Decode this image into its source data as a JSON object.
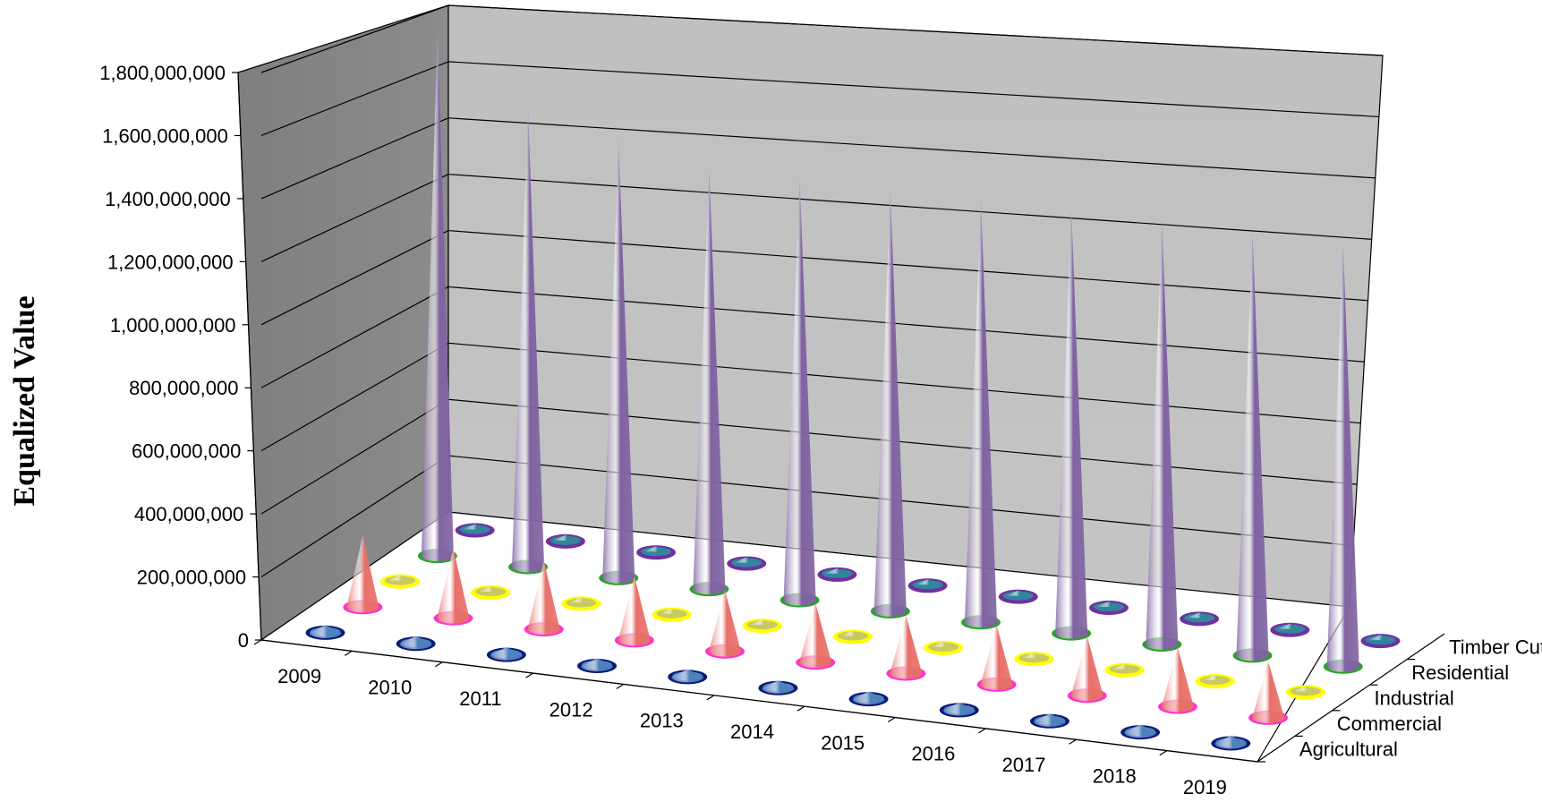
{
  "chart_data": {
    "type": "3d-cone",
    "ylabel": "Equalized Value",
    "xlabel": "",
    "title": "",
    "ylim": [
      0,
      1800000000
    ],
    "y_ticks": [
      0,
      200000000,
      400000000,
      600000000,
      800000000,
      1000000000,
      1200000000,
      1400000000,
      1600000000,
      1800000000
    ],
    "y_tick_labels": [
      "0",
      "200,000,000",
      "400,000,000",
      "600,000,000",
      "800,000,000",
      "1,000,000,000",
      "1,200,000,000",
      "1,400,000,000",
      "1,600,000,000",
      "1,800,000,000"
    ],
    "categories": [
      "2009",
      "2010",
      "2011",
      "2012",
      "2013",
      "2014",
      "2015",
      "2016",
      "2017",
      "2018",
      "2019"
    ],
    "grid": true,
    "series": [
      {
        "name": "Agricultural",
        "color": "#4f81bd",
        "ring_color": "#0a1a78",
        "values": [
          25000000,
          25000000,
          25000000,
          25000000,
          25000000,
          25000000,
          25000000,
          25000000,
          25000000,
          25000000,
          25000000
        ]
      },
      {
        "name": "Commercial",
        "color": "#e8706a",
        "ring_color": "#ff33cc",
        "values": [
          235000000,
          230000000,
          225000000,
          210000000,
          200000000,
          195000000,
          190000000,
          195000000,
          195000000,
          195000000,
          185000000
        ]
      },
      {
        "name": "Industrial",
        "color": "#c8c864",
        "ring_color": "#ffff00",
        "values": [
          5000000,
          5000000,
          5000000,
          5000000,
          5000000,
          5000000,
          5000000,
          5000000,
          5000000,
          5000000,
          5000000
        ]
      },
      {
        "name": "Residential",
        "color": "#8064a2",
        "ring_color": "#2ca02c",
        "values": [
          1800000000,
          1570000000,
          1490000000,
          1440000000,
          1440000000,
          1440000000,
          1450000000,
          1450000000,
          1450000000,
          1450000000,
          1450000000
        ]
      },
      {
        "name": "Timber Cutover",
        "color": "#31859c",
        "ring_color": "#7030a0",
        "values": [
          3000000,
          3000000,
          3000000,
          3000000,
          3000000,
          3000000,
          3000000,
          3000000,
          3000000,
          3000000,
          3000000
        ]
      }
    ],
    "legend": "depth-axis"
  }
}
